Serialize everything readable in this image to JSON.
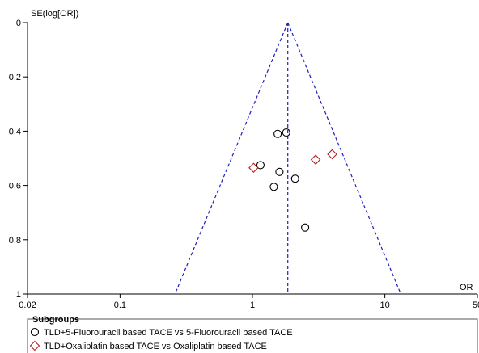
{
  "chart_data": {
    "type": "scatter",
    "title": "",
    "xlabel": "OR",
    "ylabel": "SE(log[OR])",
    "x_scale": "log",
    "xlim": [
      0.02,
      50
    ],
    "ylim": [
      0,
      1
    ],
    "y_inverted": true,
    "x_ticks": [
      {
        "value": 0.02,
        "label": "0.02"
      },
      {
        "value": 0.1,
        "label": "0.1"
      },
      {
        "value": 1,
        "label": "1"
      },
      {
        "value": 10,
        "label": "10"
      },
      {
        "value": 50,
        "label": "50"
      }
    ],
    "y_ticks": [
      {
        "value": 0,
        "label": "0"
      },
      {
        "value": 0.2,
        "label": "0.2"
      },
      {
        "value": 0.4,
        "label": "0.4"
      },
      {
        "value": 0.6,
        "label": "0.6"
      },
      {
        "value": 0.8,
        "label": "0.8"
      },
      {
        "value": 1,
        "label": "1"
      }
    ],
    "pooled_or": 1.85,
    "funnel": {
      "left_or_at_se1": 0.26,
      "right_or_at_se1": 13.2
    },
    "legend_title": "Subgroups",
    "series": [
      {
        "name": "TLD+5-Fluorouracil based TACE vs 5-Fluorouracil based TACE",
        "marker": "circle",
        "color": "#000000",
        "points": [
          {
            "x": 1.55,
            "y": 0.41
          },
          {
            "x": 1.8,
            "y": 0.405
          },
          {
            "x": 1.15,
            "y": 0.525
          },
          {
            "x": 1.6,
            "y": 0.55
          },
          {
            "x": 2.1,
            "y": 0.575
          },
          {
            "x": 1.45,
            "y": 0.605
          },
          {
            "x": 2.5,
            "y": 0.755
          }
        ]
      },
      {
        "name": "TLD+Oxaliplatin based TACE vs Oxaliplatin based TACE",
        "marker": "diamond",
        "color": "#b22222",
        "points": [
          {
            "x": 1.02,
            "y": 0.535
          },
          {
            "x": 3.0,
            "y": 0.505
          },
          {
            "x": 4.0,
            "y": 0.485
          }
        ]
      }
    ]
  },
  "colors": {
    "funnel": "#1f1fbf",
    "axis": "#000000"
  }
}
